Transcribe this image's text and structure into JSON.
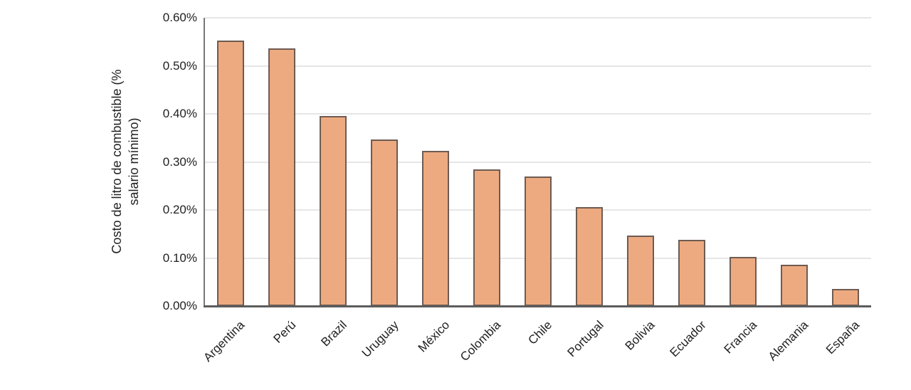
{
  "chart_data": {
    "type": "bar",
    "title": "",
    "xlabel": "",
    "ylabel": "Costo de litro de combustible (% salario mínimo)",
    "ylabel_line1": "Costo de litro de combustible (%",
    "ylabel_line2": "salario mínimo)",
    "categories": [
      "Argentina",
      "Perú",
      "Brazil",
      "Uruguay",
      "México",
      "Colombia",
      "Chile",
      "Portugal",
      "Bolivia",
      "Ecuador",
      "Francia",
      "Alemania",
      "España"
    ],
    "values": [
      0.553,
      0.537,
      0.395,
      0.346,
      0.323,
      0.285,
      0.269,
      0.206,
      0.146,
      0.138,
      0.102,
      0.086,
      0.036
    ],
    "value_unit": "percent_of_minimum_salary",
    "ylim": [
      0,
      0.6
    ],
    "ytick_step": 0.1,
    "ytick_labels": [
      "0.00%",
      "0.10%",
      "0.20%",
      "0.30%",
      "0.40%",
      "0.50%",
      "0.60%"
    ],
    "grid": "horizontal",
    "legend": "none",
    "colors": {
      "bar_fill": "#edaa80",
      "bar_border": "#6e5b52",
      "gridline": "#e6e6e6",
      "y_axis_line": "#787878",
      "x_axis_line": "#5c5c5c",
      "text": "#212121"
    }
  }
}
